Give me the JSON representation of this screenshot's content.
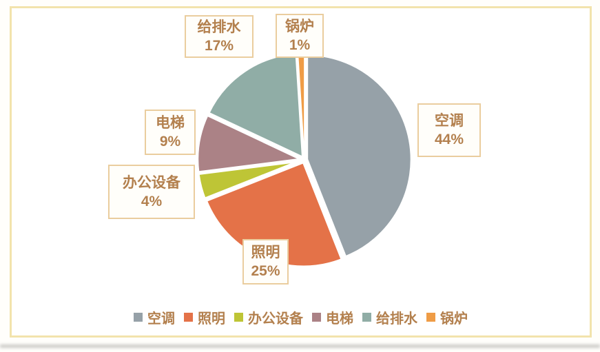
{
  "chart_data": {
    "type": "pie",
    "title": "",
    "categories": [
      "空调",
      "照明",
      "办公设备",
      "电梯",
      "给排水",
      "锅炉"
    ],
    "values": [
      44,
      25,
      4,
      9,
      17,
      1
    ],
    "colors": [
      "#96A1A8",
      "#E47248",
      "#BEC536",
      "#AB8286",
      "#90ADA6",
      "#EF9C46"
    ],
    "data_labels": [
      {
        "name": "空调",
        "pct": "44%"
      },
      {
        "name": "照明",
        "pct": "25%"
      },
      {
        "name": "办公设备",
        "pct": "4%"
      },
      {
        "name": "电梯",
        "pct": "9%"
      },
      {
        "name": "给排水",
        "pct": "17%"
      },
      {
        "name": "锅炉",
        "pct": "1%"
      }
    ],
    "legend_items": [
      "空调",
      "照明",
      "办公设备",
      "电梯",
      "给排水",
      "锅炉"
    ],
    "legend_position": "bottom",
    "start_angle_deg": 0,
    "direction": "clockwise",
    "slice_separator_color": "#FFFFFF",
    "label_text_color": "#B3804E",
    "label_box_border_color": "#EACD9E",
    "frame_border_color": "#F2E3AC"
  }
}
